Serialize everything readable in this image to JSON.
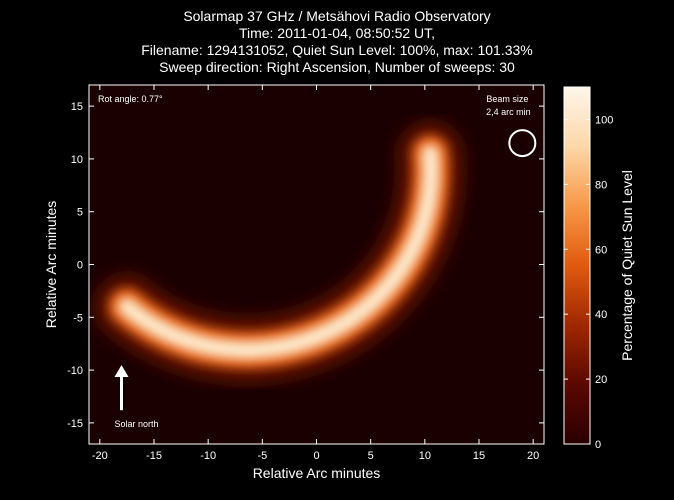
{
  "header": {
    "title": "Solarmap 37 GHz / Metsähovi Radio Observatory",
    "time": "Time: 2011-01-04, 08:50:52 UT,",
    "filename": "Filename: 1294131052, Quiet Sun Level: 100%, max: 101.33%",
    "sweep": "Sweep direction: Right Ascension, Number of sweeps: 30"
  },
  "annotations": {
    "rot_angle": "Rot angle: 0.77°",
    "beam_size_line1": "Beam size",
    "beam_size_line2": "2,4 arc min",
    "solar_north": "Solar north"
  },
  "colors": {
    "background": "#000000",
    "colormap": [
      "#2a0000",
      "#5a0800",
      "#a02800",
      "#e05a10",
      "#f89848",
      "#fcd7a8",
      "#fff6ea"
    ]
  },
  "chart_data": {
    "type": "heatmap",
    "xlabel": "Relative Arc minutes",
    "ylabel": "Relative Arc minutes",
    "xlim": [
      -21,
      21
    ],
    "ylim": [
      -17,
      17
    ],
    "xticks": [
      -20,
      -15,
      -10,
      -5,
      0,
      5,
      10,
      15,
      20
    ],
    "yticks": [
      -15,
      -10,
      -5,
      0,
      5,
      10,
      15
    ],
    "colorbar": {
      "label": "Percentage of Quiet Sun Level",
      "range": [
        0,
        110
      ],
      "ticks": [
        0,
        20,
        40,
        60,
        80,
        100
      ]
    },
    "features": {
      "bright_arc": {
        "description": "crescent of emission along the lower-right solar limb",
        "center_x": -3,
        "center_y": 1.5,
        "radius": 17,
        "start_point": [
          -17.5,
          -4
        ],
        "end_point": [
          10.5,
          10.5
        ],
        "peak_level": 101.33
      },
      "beam": {
        "center": [
          19,
          11.5
        ],
        "diameter": 2.4
      },
      "north_arrow": {
        "from": [
          -18,
          -13.8
        ],
        "to": [
          -18,
          -9.8
        ]
      }
    }
  }
}
